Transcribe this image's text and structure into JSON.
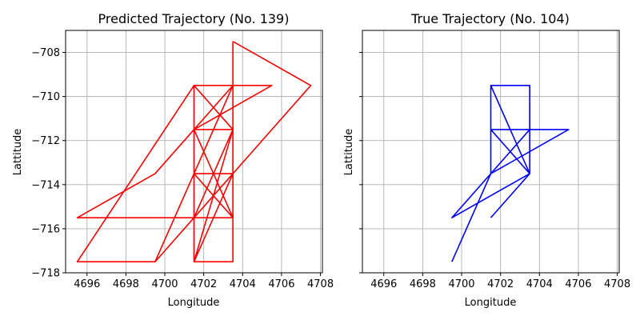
{
  "chart_data": [
    {
      "type": "line",
      "title": "Predicted Trajectory (No. 139)",
      "xlabel": "Longitude",
      "ylabel": "Lattitude",
      "xlim": [
        4694.9,
        4708.1
      ],
      "ylim": [
        -718,
        -707
      ],
      "xticks": [
        4696,
        4698,
        4700,
        4702,
        4704,
        4706,
        4708
      ],
      "yticks": [
        -718,
        -716,
        -714,
        -712,
        -710,
        -708
      ],
      "xtick_labels": [
        "4696",
        "4698",
        "4700",
        "4702",
        "4704",
        "4706",
        "4708"
      ],
      "ytick_labels": [
        "−718",
        "−716",
        "−714",
        "−712",
        "−710",
        "−708"
      ],
      "grid": true,
      "color": "#ff0000",
      "series": [
        {
          "x": [
            4703.5,
            4707.5,
            4701.5,
            4703.5,
            4701.5,
            4703.5,
            4701.5,
            4703.5,
            4701.5,
            4703.5,
            4701.5,
            4703.5,
            4701.5,
            4703.5,
            4701.5,
            4701.5,
            4701.5,
            4703.5,
            4703.5,
            4703.5,
            4703.5,
            4703.5,
            4703.5,
            4701.5,
            4699.5,
            4695.5,
            4701.5,
            4703.5,
            4701.5,
            4705.5,
            4701.5,
            4701.5,
            4699.5,
            4695.5,
            4703.5,
            4701.5,
            4699.5,
            4703.5,
            4701.5,
            4703.5,
            4703.5
          ],
          "y": [
            -707.5,
            -709.5,
            -715.5,
            -715.5,
            -711.5,
            -711.5,
            -709.5,
            -709.5,
            -713.5,
            -713.5,
            -715.5,
            -715.5,
            -711.5,
            -711.5,
            -717.5,
            -709.5,
            -715.5,
            -711.5,
            -715.5,
            -713.5,
            -709.5,
            -715.5,
            -709.5,
            -713.5,
            -717.5,
            -717.5,
            -709.5,
            -709.5,
            -711.5,
            -709.5,
            -709.5,
            -711.5,
            -713.5,
            -715.5,
            -715.5,
            -713.5,
            -717.5,
            -713.5,
            -717.5,
            -717.5,
            -707.5
          ]
        }
      ]
    },
    {
      "type": "line",
      "title": "True Trajectory (No. 104)",
      "xlabel": "Longitude",
      "ylabel": "Lattitude",
      "xlim": [
        4694.9,
        4708.1
      ],
      "ylim": [
        -718,
        -707
      ],
      "xticks": [
        4696,
        4698,
        4700,
        4702,
        4704,
        4706,
        4708
      ],
      "yticks": [
        -718,
        -716,
        -714,
        -712,
        -710,
        -708
      ],
      "xtick_labels": [
        "4696",
        "4698",
        "4700",
        "4702",
        "4704",
        "4706",
        "4708"
      ],
      "ytick_labels": [
        "",
        "",
        "",
        "",
        "",
        ""
      ],
      "grid": true,
      "color": "#0000ff",
      "series": [
        {
          "x": [
            4699.5,
            4701.5,
            4701.5,
            4703.5,
            4703.5,
            4701.5,
            4701.5,
            4703.5,
            4703.5,
            4701.5,
            4703.5,
            4701.5,
            4705.5,
            4703.5,
            4699.5,
            4703.5,
            4701.5
          ],
          "y": [
            -717.5,
            -713.5,
            -709.5,
            -709.5,
            -713.5,
            -709.5,
            -711.5,
            -713.5,
            -711.5,
            -711.5,
            -711.5,
            -713.5,
            -711.5,
            -711.5,
            -715.5,
            -713.5,
            -715.5
          ]
        }
      ]
    }
  ]
}
